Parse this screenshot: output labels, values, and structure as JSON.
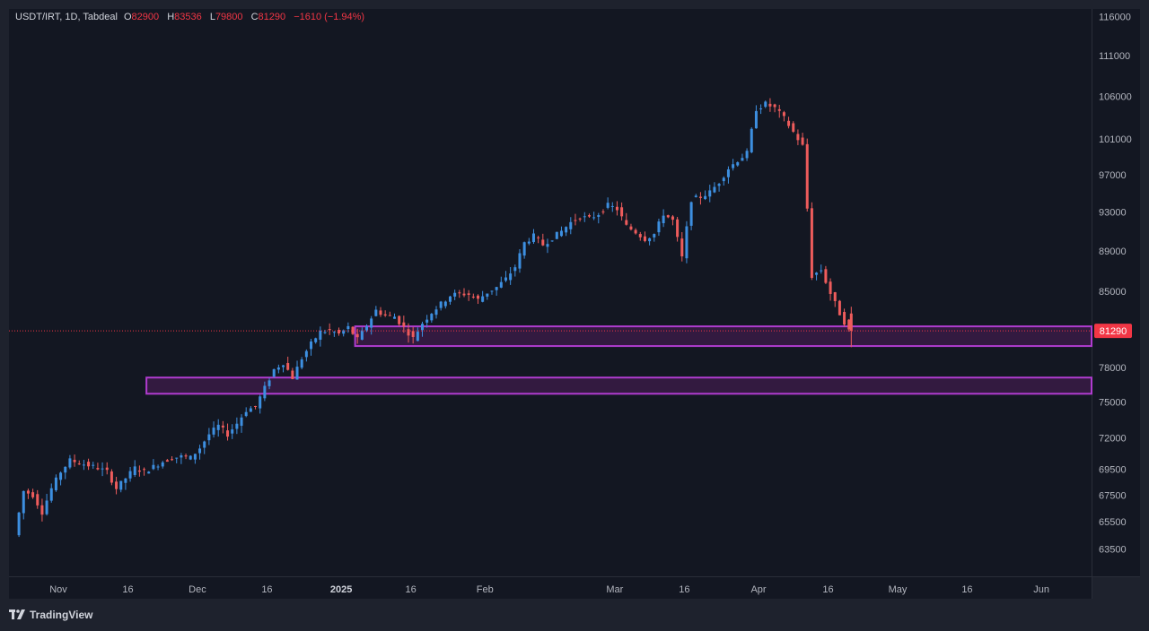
{
  "legend": {
    "symbol": "USDT/IRT, 1D, Tabdeal",
    "open_label": "O",
    "open": "82900",
    "high_label": "H",
    "high": "83536",
    "low_label": "L",
    "low": "79800",
    "close_label": "C",
    "close": "81290",
    "change": "−1610 (−1.94%)"
  },
  "brand": {
    "name": "TradingView",
    "icon": "tradingview-logo-icon"
  },
  "colors": {
    "background": "#131722",
    "frame": "#1e222d",
    "up": "#3d8fe0",
    "down": "#ee5c5c",
    "zone_stroke": "#b03ccf",
    "zone_fill": "#5c2066",
    "price_tag": "#f23645",
    "axis_text": "#b2b5be"
  },
  "chart_data": {
    "type": "candlestick",
    "title": "USDT/IRT, 1D, Tabdeal",
    "xlabel": "",
    "ylabel": "",
    "ylim": [
      62000,
      116000
    ],
    "y_ticks": [
      116000,
      111000,
      106000,
      101000,
      97000,
      93000,
      89000,
      85000,
      78000,
      75000,
      72000,
      69500,
      67500,
      65500,
      63500
    ],
    "current_price": 81290,
    "current_price_label": "81290",
    "x_ticks": [
      {
        "label": "Nov",
        "date": "2024-11-01"
      },
      {
        "label": "16",
        "date": "2024-11-16"
      },
      {
        "label": "Dec",
        "date": "2024-12-01"
      },
      {
        "label": "16",
        "date": "2024-12-16"
      },
      {
        "label": "2025",
        "date": "2025-01-01"
      },
      {
        "label": "16",
        "date": "2025-01-16"
      },
      {
        "label": "Feb",
        "date": "2025-02-01"
      },
      {
        "label": "Mar",
        "date": "2025-03-01"
      },
      {
        "label": "16",
        "date": "2025-03-16"
      },
      {
        "label": "Apr",
        "date": "2025-04-01"
      },
      {
        "label": "16",
        "date": "2025-04-16"
      },
      {
        "label": "May",
        "date": "2025-05-01"
      },
      {
        "label": "16",
        "date": "2025-05-16"
      },
      {
        "label": "Jun",
        "date": "2025-06-01"
      }
    ],
    "x_range": [
      "2024-10-23",
      "2025-06-16"
    ],
    "zones": [
      {
        "name": "resistance-zone-upper",
        "start": "2025-01-04",
        "end": "2025-06-16",
        "top": 81700,
        "bottom": 79900
      },
      {
        "name": "support-zone-lower",
        "start": "2024-11-20",
        "end": "2025-06-16",
        "top": 77100,
        "bottom": 75700
      }
    ],
    "close_series": [
      [
        "2024-10-23",
        64500
      ],
      [
        "2024-10-25",
        67800
      ],
      [
        "2024-10-27",
        67500
      ],
      [
        "2024-10-29",
        66200
      ],
      [
        "2024-10-31",
        68000
      ],
      [
        "2024-11-02",
        69300
      ],
      [
        "2024-11-04",
        70200
      ],
      [
        "2024-11-06",
        70000
      ],
      [
        "2024-11-08",
        69800
      ],
      [
        "2024-11-10",
        69600
      ],
      [
        "2024-11-12",
        69300
      ],
      [
        "2024-11-14",
        68000
      ],
      [
        "2024-11-16",
        68800
      ],
      [
        "2024-11-18",
        69600
      ],
      [
        "2024-11-20",
        69300
      ],
      [
        "2024-11-22",
        69700
      ],
      [
        "2024-11-24",
        70100
      ],
      [
        "2024-11-26",
        70400
      ],
      [
        "2024-11-28",
        70500
      ],
      [
        "2024-11-30",
        70400
      ],
      [
        "2024-12-02",
        71200
      ],
      [
        "2024-12-04",
        72300
      ],
      [
        "2024-12-06",
        73000
      ],
      [
        "2024-12-08",
        72300
      ],
      [
        "2024-12-10",
        73200
      ],
      [
        "2024-12-12",
        74300
      ],
      [
        "2024-12-14",
        74600
      ],
      [
        "2024-12-16",
        76200
      ],
      [
        "2024-12-18",
        77800
      ],
      [
        "2024-12-20",
        78400
      ],
      [
        "2024-12-22",
        77100
      ],
      [
        "2024-12-24",
        78800
      ],
      [
        "2024-12-26",
        80100
      ],
      [
        "2024-12-28",
        81200
      ],
      [
        "2024-12-30",
        81300
      ],
      [
        "2025-01-01",
        81000
      ],
      [
        "2025-01-03",
        81600
      ],
      [
        "2025-01-05",
        80500
      ],
      [
        "2025-01-07",
        81800
      ],
      [
        "2025-01-09",
        83200
      ],
      [
        "2025-01-11",
        82700
      ],
      [
        "2025-01-13",
        82600
      ],
      [
        "2025-01-15",
        81600
      ],
      [
        "2025-01-17",
        80600
      ],
      [
        "2025-01-19",
        82000
      ],
      [
        "2025-01-21",
        83000
      ],
      [
        "2025-01-23",
        83800
      ],
      [
        "2025-01-25",
        84600
      ],
      [
        "2025-01-27",
        84800
      ],
      [
        "2025-01-29",
        84700
      ],
      [
        "2025-01-31",
        84200
      ],
      [
        "2025-02-02",
        84900
      ],
      [
        "2025-02-04",
        85400
      ],
      [
        "2025-02-06",
        86200
      ],
      [
        "2025-02-08",
        87400
      ],
      [
        "2025-02-10",
        89800
      ],
      [
        "2025-02-12",
        90500
      ],
      [
        "2025-02-14",
        89600
      ],
      [
        "2025-02-16",
        90300
      ],
      [
        "2025-02-18",
        91000
      ],
      [
        "2025-02-20",
        91900
      ],
      [
        "2025-02-22",
        92500
      ],
      [
        "2025-02-24",
        92300
      ],
      [
        "2025-02-26",
        92800
      ],
      [
        "2025-02-28",
        93700
      ],
      [
        "2025-03-02",
        93300
      ],
      [
        "2025-03-04",
        91500
      ],
      [
        "2025-03-06",
        90900
      ],
      [
        "2025-03-08",
        90200
      ],
      [
        "2025-03-10",
        90700
      ],
      [
        "2025-03-12",
        92800
      ],
      [
        "2025-03-14",
        92100
      ],
      [
        "2025-03-16",
        88300
      ],
      [
        "2025-03-18",
        94300
      ],
      [
        "2025-03-20",
        94600
      ],
      [
        "2025-03-22",
        95100
      ],
      [
        "2025-03-24",
        96200
      ],
      [
        "2025-03-26",
        97700
      ],
      [
        "2025-03-28",
        98600
      ],
      [
        "2025-03-30",
        99400
      ],
      [
        "2025-04-01",
        104500
      ],
      [
        "2025-04-03",
        105100
      ],
      [
        "2025-04-05",
        104600
      ],
      [
        "2025-04-07",
        103400
      ],
      [
        "2025-04-09",
        101800
      ],
      [
        "2025-04-11",
        100200
      ],
      [
        "2025-04-13",
        86500
      ],
      [
        "2025-04-15",
        87100
      ],
      [
        "2025-04-17",
        84800
      ],
      [
        "2025-04-19",
        82900
      ],
      [
        "2025-04-21",
        81290
      ]
    ]
  }
}
